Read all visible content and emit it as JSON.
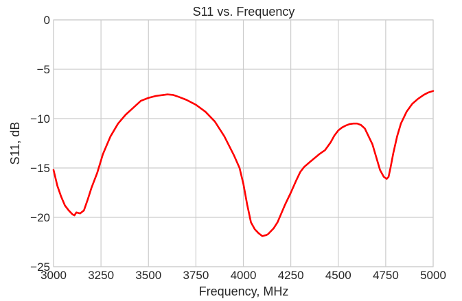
{
  "chart_data": {
    "type": "line",
    "title": "S11 vs. Frequency",
    "xlabel": "Frequency, MHz",
    "ylabel": "S11, dB",
    "xlim": [
      3000,
      5000
    ],
    "ylim": [
      -25,
      0
    ],
    "grid": true,
    "line_color": "#ff0000",
    "x_ticks": [
      3000,
      3250,
      3500,
      3750,
      4000,
      4250,
      4500,
      4750,
      5000
    ],
    "y_ticks": [
      0,
      -5,
      -10,
      -15,
      -20,
      -25
    ],
    "x_tick_labels": [
      "3000",
      "3250",
      "3500",
      "3750",
      "4000",
      "4250",
      "4500",
      "4750",
      "5000"
    ],
    "y_tick_labels": [
      "0",
      "−5",
      "−10",
      "−15",
      "−20",
      "−25"
    ],
    "series": [
      {
        "x": [
          3000,
          3020,
          3040,
          3060,
          3080,
          3100,
          3110,
          3120,
          3140,
          3160,
          3180,
          3200,
          3230,
          3260,
          3300,
          3340,
          3380,
          3420,
          3460,
          3500,
          3540,
          3580,
          3600,
          3630,
          3660,
          3700,
          3750,
          3800,
          3850,
          3900,
          3950,
          3980,
          4000,
          4020,
          4040,
          4060,
          4080,
          4100,
          4120,
          4130,
          4140,
          4160,
          4180,
          4200,
          4220,
          4250,
          4280,
          4300,
          4320,
          4350,
          4400,
          4430,
          4460,
          4480,
          4500,
          4520,
          4540,
          4560,
          4580,
          4600,
          4620,
          4640,
          4660,
          4680,
          4700,
          4720,
          4740,
          4755,
          4765,
          4775,
          4790,
          4810,
          4830,
          4860,
          4890,
          4920,
          4950,
          4975,
          5000
        ],
        "y": [
          -15.2,
          -16.8,
          -17.9,
          -18.8,
          -19.3,
          -19.7,
          -19.8,
          -19.5,
          -19.6,
          -19.3,
          -18.2,
          -17.0,
          -15.5,
          -13.6,
          -11.8,
          -10.5,
          -9.6,
          -8.9,
          -8.2,
          -7.9,
          -7.7,
          -7.6,
          -7.55,
          -7.6,
          -7.8,
          -8.1,
          -8.6,
          -9.3,
          -10.3,
          -11.8,
          -13.7,
          -15.0,
          -16.6,
          -18.7,
          -20.5,
          -21.2,
          -21.6,
          -21.9,
          -21.8,
          -21.7,
          -21.5,
          -21.1,
          -20.5,
          -19.6,
          -18.7,
          -17.5,
          -16.2,
          -15.4,
          -14.9,
          -14.4,
          -13.6,
          -13.2,
          -12.4,
          -11.7,
          -11.2,
          -10.9,
          -10.7,
          -10.55,
          -10.5,
          -10.5,
          -10.65,
          -11.0,
          -11.8,
          -12.6,
          -13.9,
          -15.2,
          -15.9,
          -16.1,
          -15.9,
          -15.0,
          -13.5,
          -11.8,
          -10.5,
          -9.3,
          -8.5,
          -8.0,
          -7.6,
          -7.35,
          -7.2
        ]
      }
    ]
  }
}
